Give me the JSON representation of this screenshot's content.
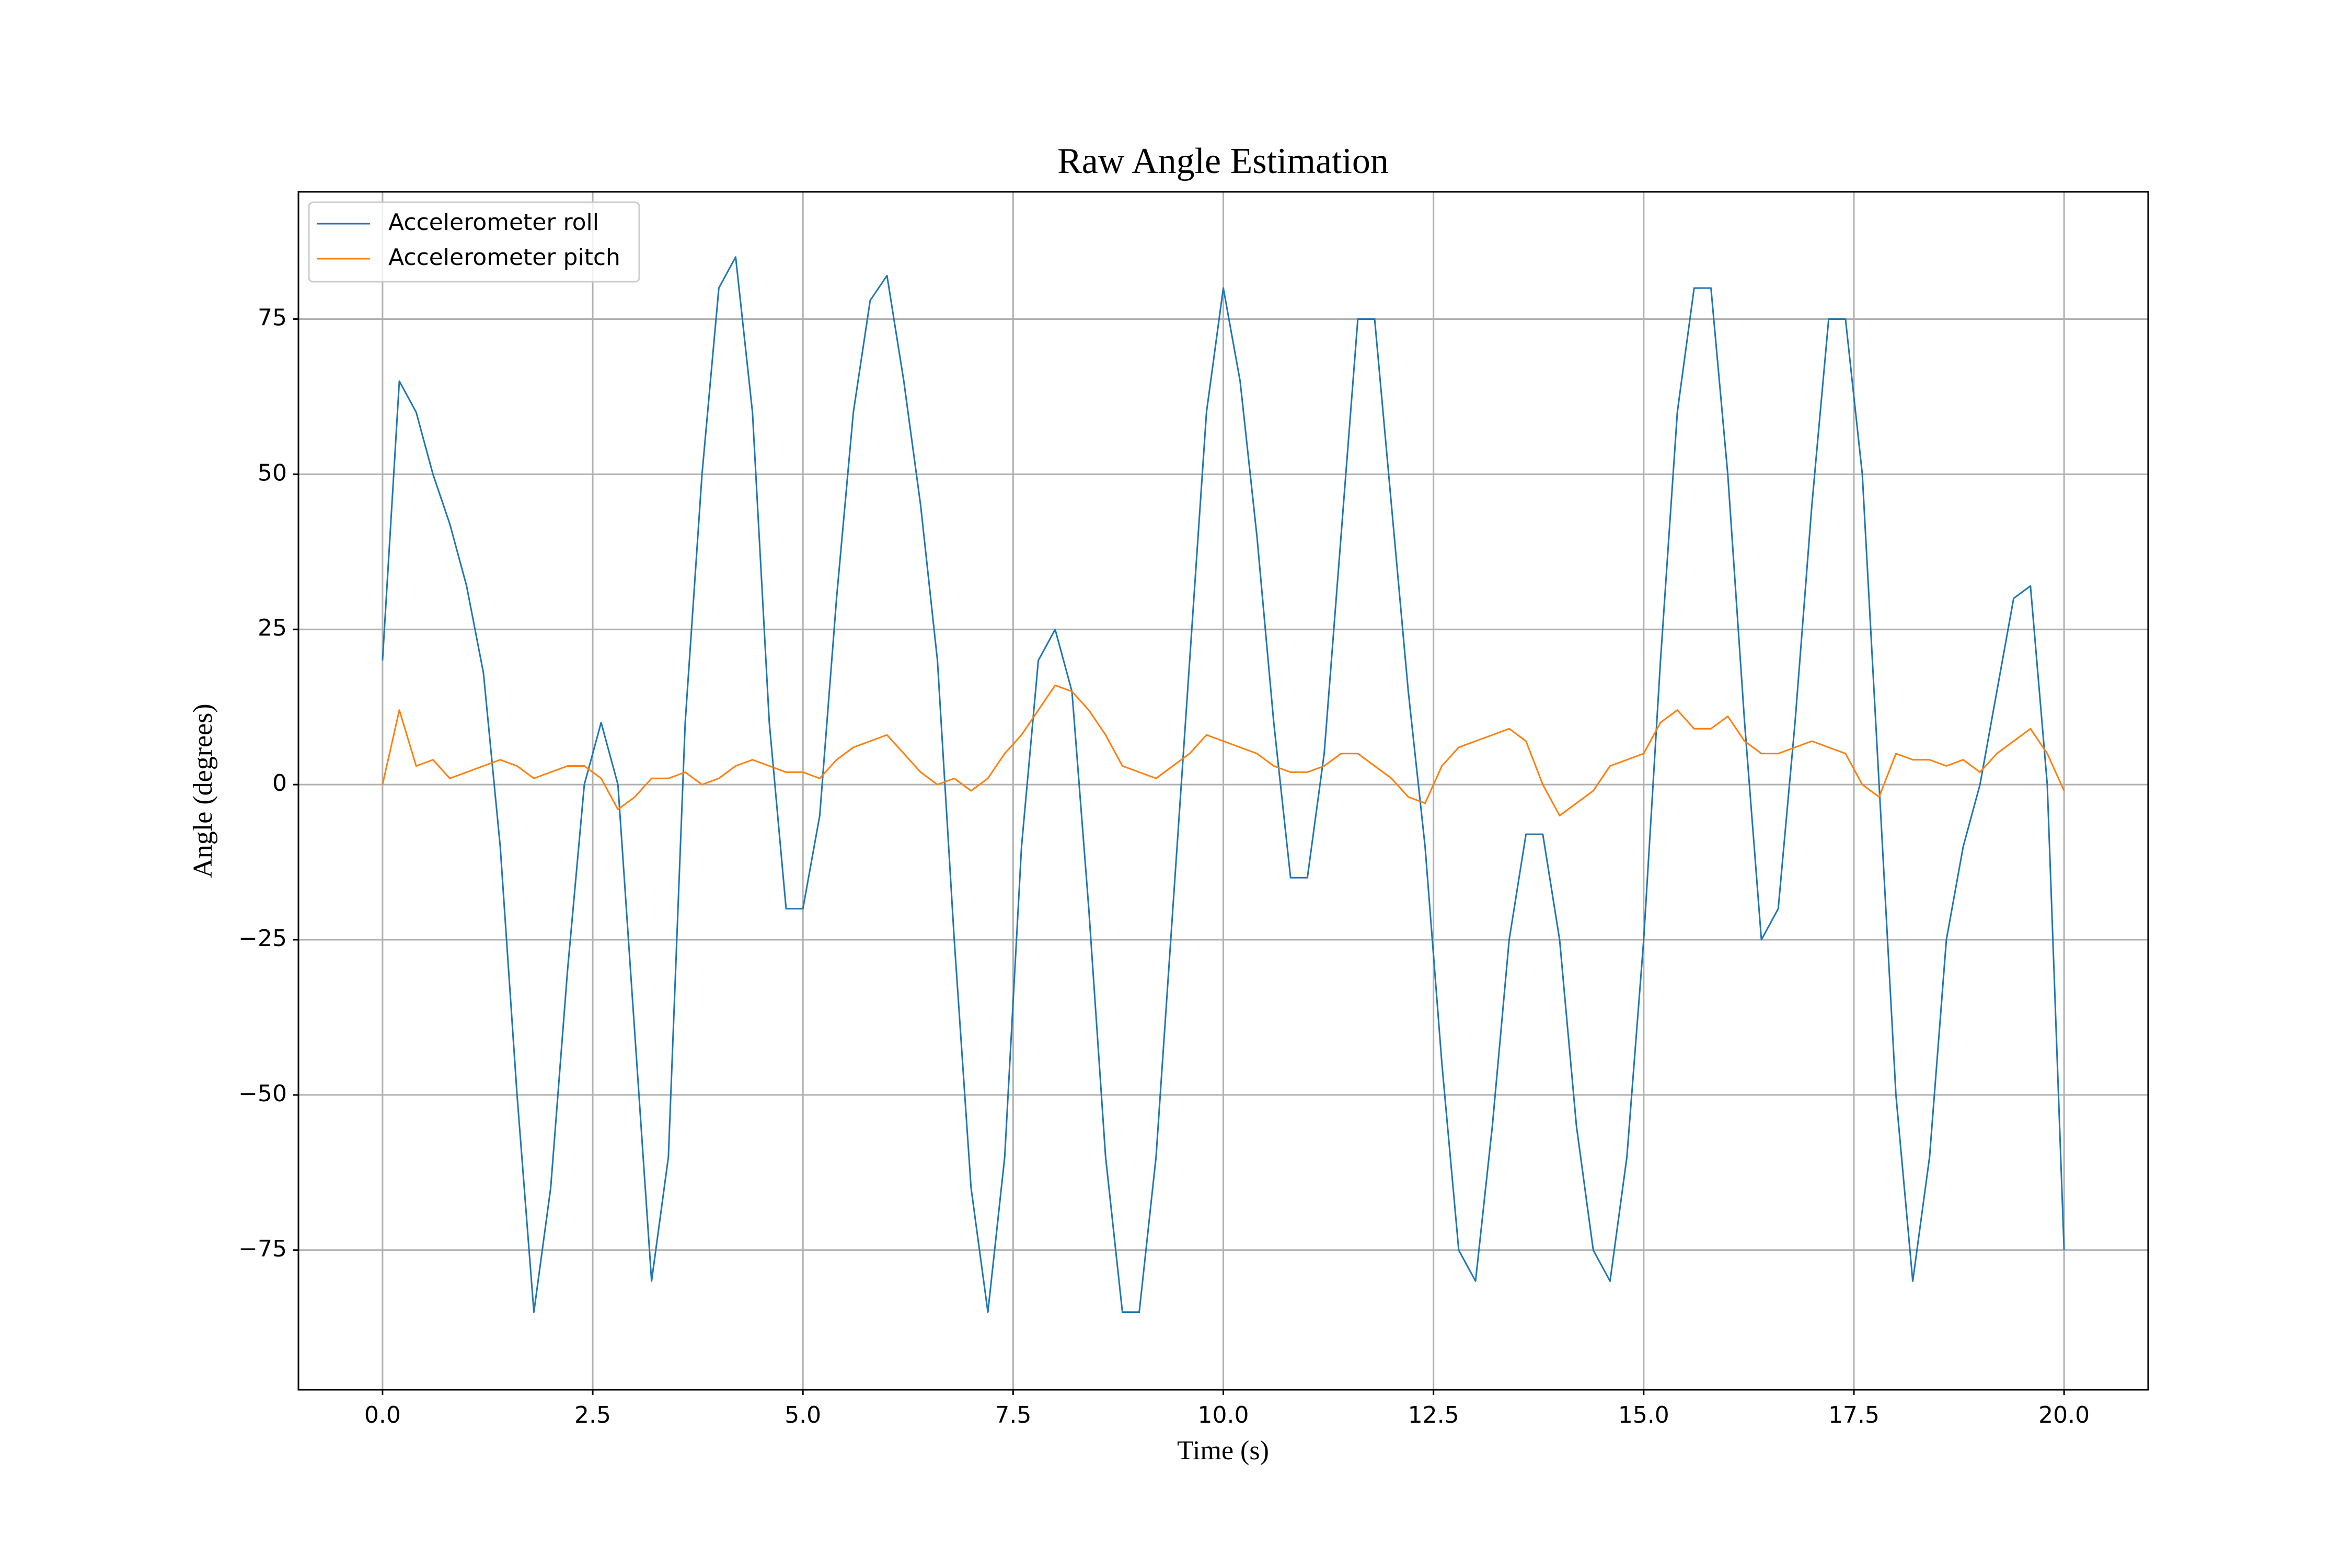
{
  "chart_data": {
    "type": "line",
    "title": "Raw Angle Estimation",
    "x_label": "Time (s)",
    "y_label": "Angle (degrees)",
    "x": [
      0,
      0.2,
      0.4,
      0.6,
      0.8,
      1,
      1.2,
      1.4,
      1.6,
      1.8,
      2,
      2.2,
      2.4,
      2.6,
      2.8,
      3,
      3.2,
      3.4,
      3.6,
      3.8,
      4,
      4.2,
      4.4,
      4.6,
      4.8,
      5,
      5.2,
      5.4,
      5.6,
      5.8,
      6,
      6.2,
      6.4,
      6.6,
      6.8,
      7,
      7.2,
      7.4,
      7.6,
      7.8,
      8,
      8.2,
      8.4,
      8.6,
      8.8,
      9,
      9.2,
      9.4,
      9.6,
      9.8,
      10,
      10.2,
      10.4,
      10.6,
      10.8,
      11,
      11.2,
      11.4,
      11.6,
      11.8,
      12,
      12.2,
      12.4,
      12.6,
      12.8,
      13,
      13.2,
      13.4,
      13.6,
      13.8,
      14,
      14.2,
      14.4,
      14.6,
      14.8,
      15,
      15.2,
      15.4,
      15.6,
      15.8,
      16,
      16.2,
      16.4,
      16.6,
      16.8,
      17,
      17.2,
      17.4,
      17.6,
      17.8,
      18,
      18.2,
      18.4,
      18.6,
      18.8,
      19,
      19.2,
      19.4,
      19.6,
      19.8,
      20
    ],
    "series": [
      {
        "name": "Accelerometer roll",
        "color": "#1f77b4",
        "values": [
          20,
          65,
          60,
          50,
          42,
          32,
          18,
          -10,
          -50,
          -85,
          -65,
          -30,
          0,
          10,
          0,
          -40,
          -80,
          -60,
          10,
          50,
          80,
          85,
          60,
          10,
          -20,
          -20,
          -5,
          30,
          60,
          78,
          82,
          65,
          45,
          20,
          -25,
          -65,
          -85,
          -60,
          -10,
          20,
          25,
          15,
          -20,
          -60,
          -85,
          -85,
          -60,
          -20,
          20,
          60,
          80,
          65,
          40,
          10,
          -15,
          -15,
          5,
          40,
          75,
          75,
          45,
          15,
          -10,
          -45,
          -75,
          -80,
          -55,
          -25,
          -8,
          -8,
          -25,
          -55,
          -75,
          -80,
          -60,
          -25,
          20,
          60,
          80,
          80,
          50,
          10,
          -25,
          -20,
          10,
          45,
          75,
          75,
          50,
          0,
          -50,
          -80,
          -60,
          -25,
          -10,
          0,
          15,
          30,
          32,
          0,
          -75
        ]
      },
      {
        "name": "Accelerometer pitch",
        "color": "#ff7f0e",
        "values": [
          0,
          12,
          3,
          4,
          1,
          2,
          3,
          4,
          3,
          1,
          2,
          3,
          3,
          1,
          -4,
          -2,
          1,
          1,
          2,
          0,
          1,
          3,
          4,
          3,
          2,
          2,
          1,
          4,
          6,
          7,
          8,
          5,
          2,
          0,
          1,
          -1,
          1,
          5,
          8,
          12,
          16,
          15,
          12,
          8,
          3,
          2,
          1,
          3,
          5,
          8,
          7,
          6,
          5,
          3,
          2,
          2,
          3,
          5,
          5,
          3,
          1,
          -2,
          -3,
          3,
          6,
          7,
          8,
          9,
          7,
          0,
          -5,
          -3,
          -1,
          3,
          4,
          5,
          10,
          12,
          9,
          9,
          11,
          7,
          5,
          5,
          6,
          7,
          6,
          5,
          0,
          -2,
          5,
          4,
          4,
          3,
          4,
          2,
          5,
          7,
          9,
          5,
          -1
        ]
      }
    ],
    "xlim": [
      -1,
      21
    ],
    "ylim": [
      -97.5,
      95.5
    ],
    "xticks": [
      {
        "value": 0,
        "label": "0.0"
      },
      2.5,
      {
        "value": 5,
        "label": "5.0"
      },
      7.5,
      {
        "value": 10,
        "label": "10.0"
      },
      12.5,
      {
        "value": 15,
        "label": "15.0"
      },
      17.5,
      {
        "value": 20,
        "label": "20.0"
      }
    ],
    "yticks": [
      {
        "value": -75,
        "label": "−75"
      },
      {
        "value": -50,
        "label": "−50"
      },
      {
        "value": -25,
        "label": "−25"
      },
      0,
      25,
      50,
      75
    ],
    "grid": true,
    "legend": "upper left"
  }
}
